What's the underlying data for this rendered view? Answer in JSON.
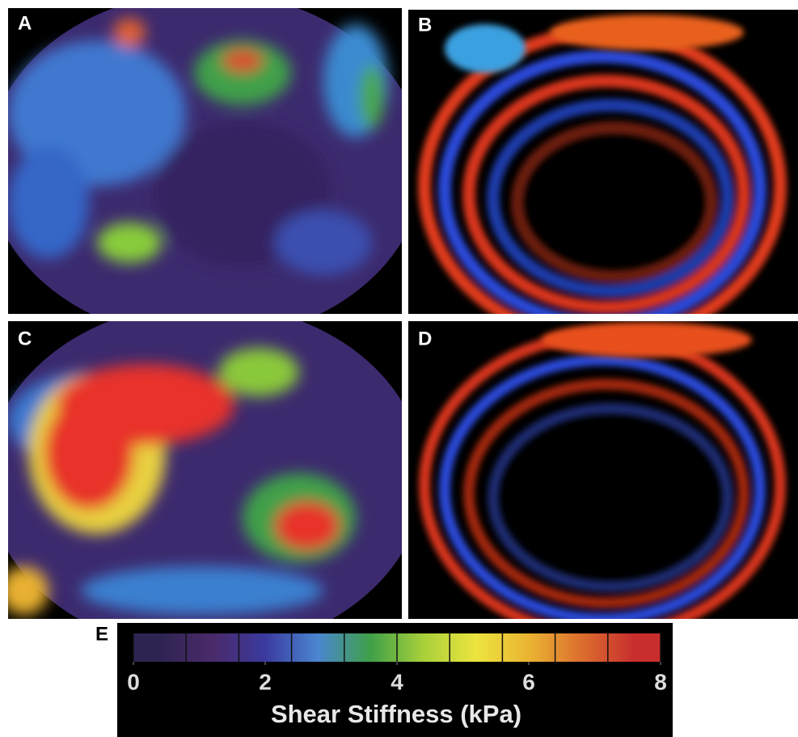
{
  "panels": [
    {
      "label": "A"
    },
    {
      "label": "B"
    },
    {
      "label": "C"
    },
    {
      "label": "D"
    }
  ],
  "colorbar": {
    "label": "E",
    "title": "Shear Stiffness (kPa)",
    "lim": [
      0,
      8
    ],
    "ticks": [
      0,
      2,
      4,
      6,
      8
    ],
    "colors": [
      "#2e2452",
      "#4a2a6a",
      "#3a3a9e",
      "#4a86d0",
      "#3fa048",
      "#a8d03a",
      "#ece43e",
      "#eab432",
      "#dc6e2e",
      "#c82e2e"
    ]
  }
}
